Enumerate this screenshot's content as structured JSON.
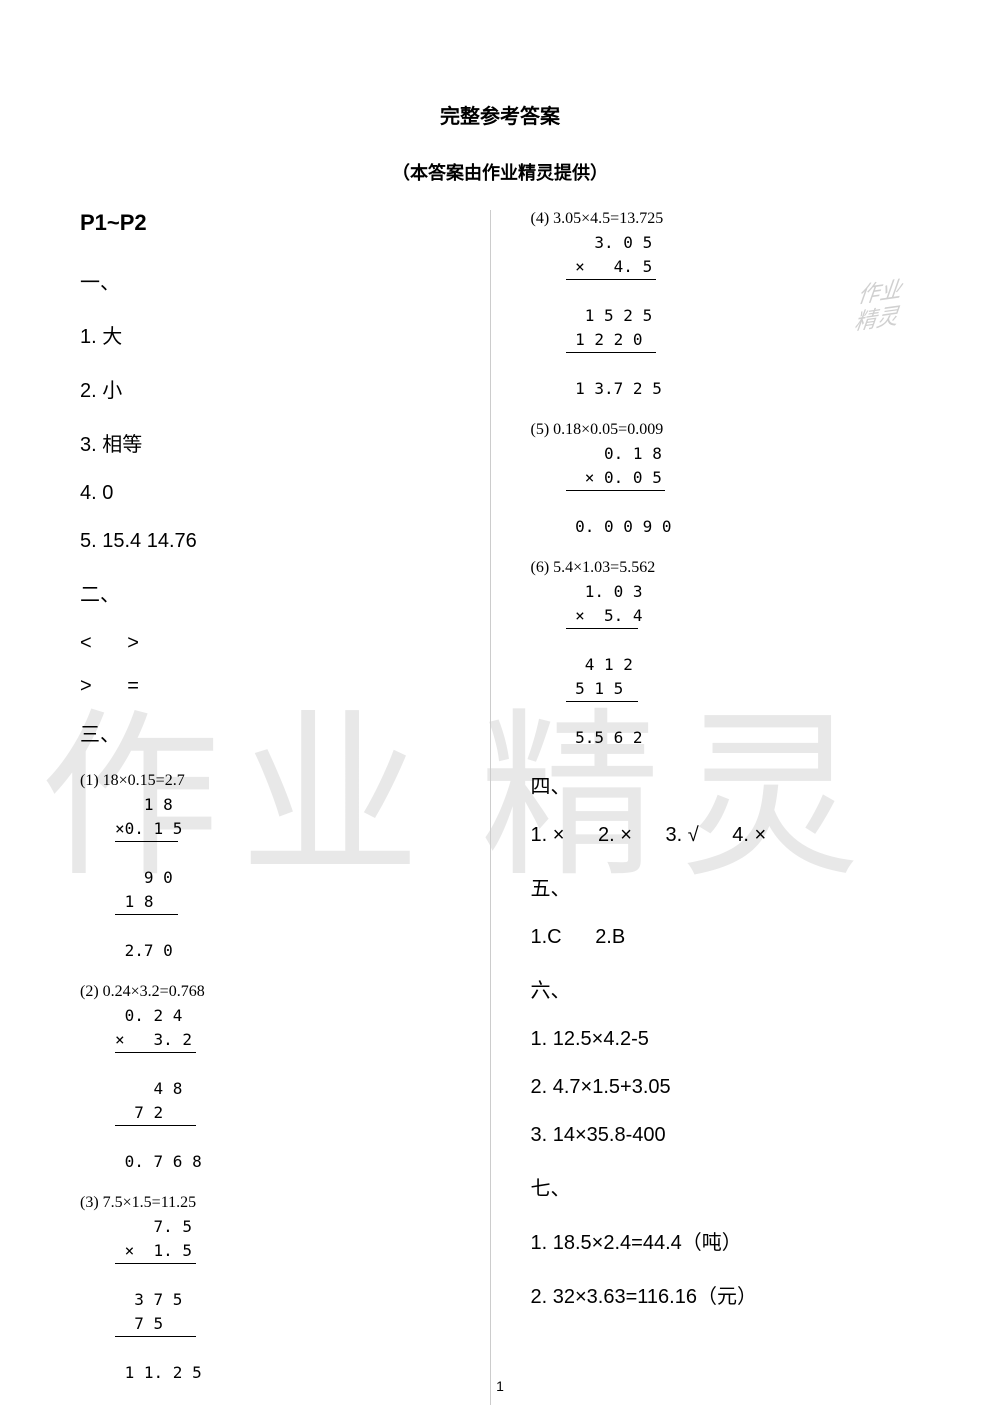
{
  "title": "完整参考答案",
  "subtitle": "（本答案由作业精灵提供）",
  "page_ref": "P1~P2",
  "section1": {
    "header": "一、",
    "items": [
      "1. 大",
      "2. 小",
      "3. 相等",
      "4. 0",
      "5. 15.4    14.76"
    ]
  },
  "section2": {
    "header": "二、",
    "row1": " <    >",
    "row2": " >    ="
  },
  "section3": {
    "header": "三、",
    "calcs": [
      {
        "title": "(1)  18×0.15=2.7",
        "lines": [
          "   1 8",
          "×0. 1 5",
          "   9 0",
          " 1 8",
          " 2.7 0"
        ],
        "hrAfter": [
          1,
          3
        ]
      },
      {
        "title": "(2)  0.24×3.2=0.768",
        "lines": [
          " 0. 2 4",
          "×   3. 2",
          "    4 8",
          "  7 2",
          " 0. 7 6 8"
        ],
        "hrAfter": [
          1,
          3
        ]
      },
      {
        "title": "(3)  7.5×1.5=11.25",
        "lines": [
          "    7. 5",
          " ×  1. 5",
          "  3 7 5",
          "  7 5",
          " 1 1. 2 5"
        ],
        "hrAfter": [
          1,
          3
        ]
      },
      {
        "title": "(4)  3.05×4.5=13.725",
        "lines": [
          "   3. 0 5",
          " ×   4. 5",
          "  1 5 2 5",
          " 1 2 2 0",
          " 1 3.7 2 5"
        ],
        "hrAfter": [
          1,
          3
        ]
      },
      {
        "title": "(5)  0.18×0.05=0.009",
        "lines": [
          "    0. 1 8",
          "  × 0. 0 5",
          " 0. 0 0 9 0"
        ],
        "hrAfter": [
          1
        ]
      },
      {
        "title": "(6)  5.4×1.03=5.562",
        "lines": [
          "  1. 0 3",
          " ×  5. 4",
          "  4 1 2",
          " 5 1 5",
          " 5.5 6 2"
        ],
        "hrAfter": [
          1,
          3
        ]
      }
    ]
  },
  "section4": {
    "header": "四、",
    "a1": "1. ×",
    "a2": "2. ×",
    "a3": "3. √",
    "a4": "4. ×"
  },
  "section5": {
    "header": "五、",
    "a1": "1.C",
    "a2": "2.B"
  },
  "section6": {
    "header": "六、",
    "items": [
      "1.  12.5×4.2-5",
      "2.  4.7×1.5+3.05",
      "3.  14×35.8-400"
    ]
  },
  "section7": {
    "header": "七、",
    "items": [
      "1.  18.5×2.4=44.4（吨）",
      "2.  32×3.63=116.16（元）"
    ]
  },
  "watermark_large1": "作业",
  "watermark_large2": "精灵",
  "watermark_small_l1": "作业",
  "watermark_small_l2": "精灵",
  "page_num": "1"
}
